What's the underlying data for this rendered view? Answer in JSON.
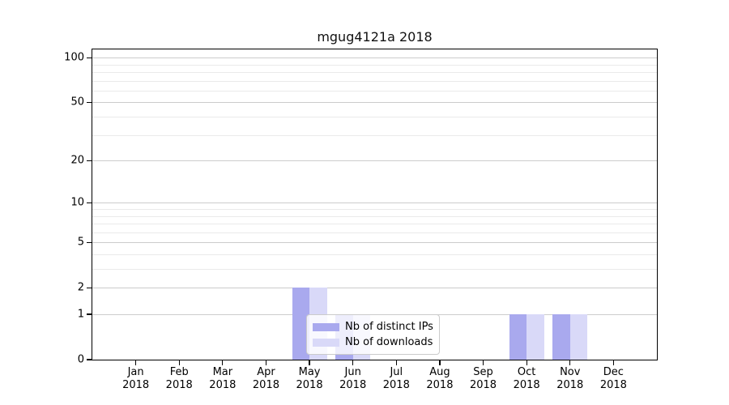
{
  "title": "mgug4121a 2018",
  "chart_data": {
    "type": "bar",
    "title": "mgug4121a 2018",
    "xlabel": "",
    "ylabel": "",
    "categories": [
      "Jan 2018",
      "Feb 2018",
      "Mar 2018",
      "Apr 2018",
      "May 2018",
      "Jun 2018",
      "Jul 2018",
      "Aug 2018",
      "Sep 2018",
      "Oct 2018",
      "Nov 2018",
      "Dec 2018"
    ],
    "series": [
      {
        "name": "Nb of distinct IPs",
        "color": "#a9a9ee",
        "values": [
          0,
          0,
          0,
          0,
          2,
          1,
          0,
          0,
          0,
          1,
          1,
          0
        ]
      },
      {
        "name": "Nb of downloads",
        "color": "#d9d9f8",
        "values": [
          0,
          0,
          0,
          0,
          2,
          1,
          0,
          0,
          0,
          1,
          1,
          0
        ]
      }
    ],
    "y_axis": {
      "scale": "log10(1+v)",
      "major_ticks": [
        0,
        1,
        2,
        5,
        10,
        20,
        50,
        100
      ],
      "minor_ticks": [
        3,
        4,
        6,
        7,
        8,
        9,
        30,
        40,
        60,
        70,
        80,
        90
      ],
      "top_value": 113.7
    },
    "legend": {
      "position": "lower center",
      "entries": [
        "Nb of distinct IPs",
        "Nb of downloads"
      ]
    },
    "grid": "on"
  },
  "colors": {
    "grid_major": "#cccccc",
    "grid_minor": "#eaeaea",
    "spine": "#000000",
    "bar_distinct_ips": "#a9a9ee",
    "bar_downloads": "#d9d9f8",
    "legend_border": "#cbcbcb"
  }
}
